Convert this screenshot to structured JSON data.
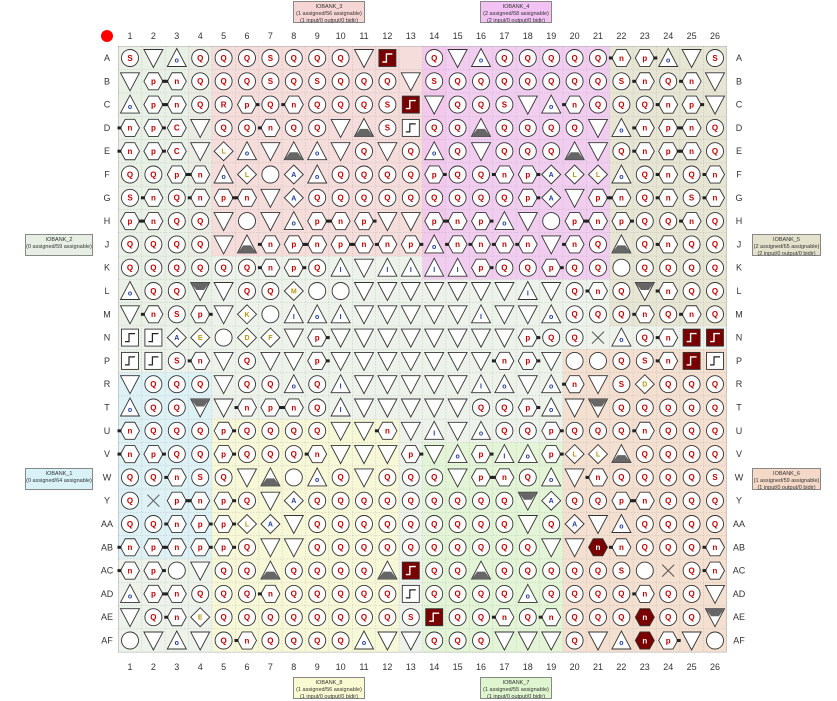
{
  "columns": [
    "1",
    "2",
    "3",
    "4",
    "5",
    "6",
    "7",
    "8",
    "9",
    "10",
    "11",
    "12",
    "13",
    "14",
    "15",
    "16",
    "17",
    "18",
    "19",
    "20",
    "21",
    "22",
    "23",
    "24",
    "25",
    "26"
  ],
  "rows": [
    "A",
    "B",
    "C",
    "D",
    "E",
    "F",
    "G",
    "H",
    "J",
    "K",
    "L",
    "M",
    "N",
    "P",
    "R",
    "T",
    "U",
    "V",
    "W",
    "Y",
    "AA",
    "AB",
    "AC",
    "AD",
    "AE",
    "AF"
  ],
  "legend_dot_color": "#ff0000",
  "banks": {
    "bank3": {
      "name": "IOBANK_3",
      "line1": "(1 assigned/56 assignable)",
      "line2": "(1 input/0 output/0 bidir)",
      "color": "#f6d5d5"
    },
    "bank4": {
      "name": "IOBANK_4",
      "line1": "(2 assigned/58 assignable)",
      "line2": "(2 input/0 output/0 bidir)",
      "color": "#f2c2f2"
    },
    "bank2": {
      "name": "IOBANK_2",
      "line1": "(0 assigned/59 assignable)",
      "line2": "",
      "color": "#e7efe4"
    },
    "bank5": {
      "name": "IOBANK_5",
      "line1": "(2 assigned/65 assignable)",
      "line2": "(2 input/0 output/0 bidir)",
      "color": "#e4e2cc"
    },
    "bank1": {
      "name": "IOBANK_1",
      "line1": "(0 assigned/64 assignable)",
      "line2": "",
      "color": "#d8f2f8"
    },
    "bank6": {
      "name": "IOBANK_6",
      "line1": "(1 assigned/59 assignable)",
      "line2": "(1 input/0 output/0 bidir)",
      "color": "#f5d9c8"
    },
    "bank8": {
      "name": "IOBANK_8",
      "line1": "(1 assigned/56 assignable)",
      "line2": "(1 input/0 output/0 bidir)",
      "color": "#fafad2"
    },
    "bank7": {
      "name": "IOBANK_7",
      "line1": "(1 assigned/55 assignable)",
      "line2": "(1 input/0 output/0 bidir)",
      "color": "#dff5cf"
    }
  },
  "pins": [
    "S v o Q Q Q S Q Q Q v G x Q v o Q Q Q Q Q n p o v S",
    "v p n Q Q Q S Q S Q Q Q v S Q Q Q Q Q Q Q S n Q n v",
    "o p n Q R p Q n Q Q Q S G v Q Q S v o n Q Q Q n p v",
    "n p C v Q Q n Q Q v t S g Q Q t Q Q Q Q v o n p n Q",
    "n p C v L o v t o v Q v Q o Q v Q Q Q t v Q n p n Q",
    "Q Q p n o L O A o Q Q Q Q p Q Q n p A L L o Q n Q n",
    "S n Q n p n v A Q Q Q Q Q Q Q Q Q p A v p n Q n S n",
    "p n Q Q v O v o p n p v v p n p o v O p n p Q Q n Q",
    "Q Q Q Q v t n p n p n n p o n n n n v n Q t Q n Q Q",
    "Q Q Q Q Q Q n p Q I v I I I I p Q Q p Q Q O Q Q Q Q",
    "o Q Q T v Q Q M O O v v v v v v v I v Q n Q T n Q Q",
    "v n S p v K O I o I v v v v v I v v o Q Q Q n Q n Q",
    "H H A E O D F v p v v v v v v v v p Q Q X o Q n G G",
    "H H S n v Q v v p v v v v v v v n p v O O Q S n G H",
    "v Q Q Q v Q Q o Q I v v v v v I o v o n v S D Q Q Q",
    "o Q Q T v n p n Q I v v v v v Q Q p o v T Q Q Q Q Q",
    "n Q Q Q p Q Q Q Q v v n v I v o Q Q p Q Q Q n Q Q Q",
    "n p Q Q p Q Q Q n v v v p v o p I o p L L t Q Q Q Q",
    "Q Q n S Q v t O o Q v Q Q Q v p n Q o v n Q Q Q Q S",
    "Q X p n p Q v A Q Q Q Q Q Q Q Q Q T A Q Q p n Q Q Q",
    "Q Q n p p L A v Q Q Q Q Q Q Q Q Q v Q A v o Q Q Q Q",
    "n p n p p Q v v Q Q Q Q Q Q Q Q Q Q v v N n Q Q Q n",
    "n p O v Q Q t Q Q Q Q t G Q Q t Q Q Q Q Q S O X Q n",
    "o p n Q Q Q n Q Q Q Q Q g Q Q Q Q o Q Q Q Q n Q Q v",
    "v Q n E Q Q Q Q Q Q Q Q S G Q Q n Q n Q Q Q N Q Q T",
    "O v o v Q n Q Q Q Q o v v Q Q Q v v v Q v o N p v O"
  ],
  "regions": [
    {
      "bank": "bank2",
      "r0": 0,
      "r1": 25,
      "c0": 0,
      "c1": 25
    },
    {
      "bank": "bank3",
      "r0": 0,
      "r1": 8,
      "c0": 3,
      "c1": 13
    },
    {
      "bank": "bank4",
      "r0": 0,
      "r1": 9,
      "c0": 13,
      "c1": 20
    },
    {
      "bank": "bank5",
      "r0": 0,
      "r1": 11,
      "c0": 21,
      "c1": 25
    },
    {
      "bank": "bank2",
      "r0": 0,
      "r1": 11,
      "c0": 0,
      "c1": 3
    },
    {
      "bank": "bank1",
      "r0": 14,
      "r1": 21,
      "c0": 0,
      "c1": 3
    },
    {
      "bank": "bank6",
      "r0": 13,
      "r1": 25,
      "c0": 19,
      "c1": 25
    },
    {
      "bank": "bank8",
      "r0": 16,
      "r1": 25,
      "c0": 4,
      "c1": 11
    },
    {
      "bank": "bank7",
      "r0": 17,
      "r1": 25,
      "c0": 13,
      "c1": 18
    }
  ]
}
